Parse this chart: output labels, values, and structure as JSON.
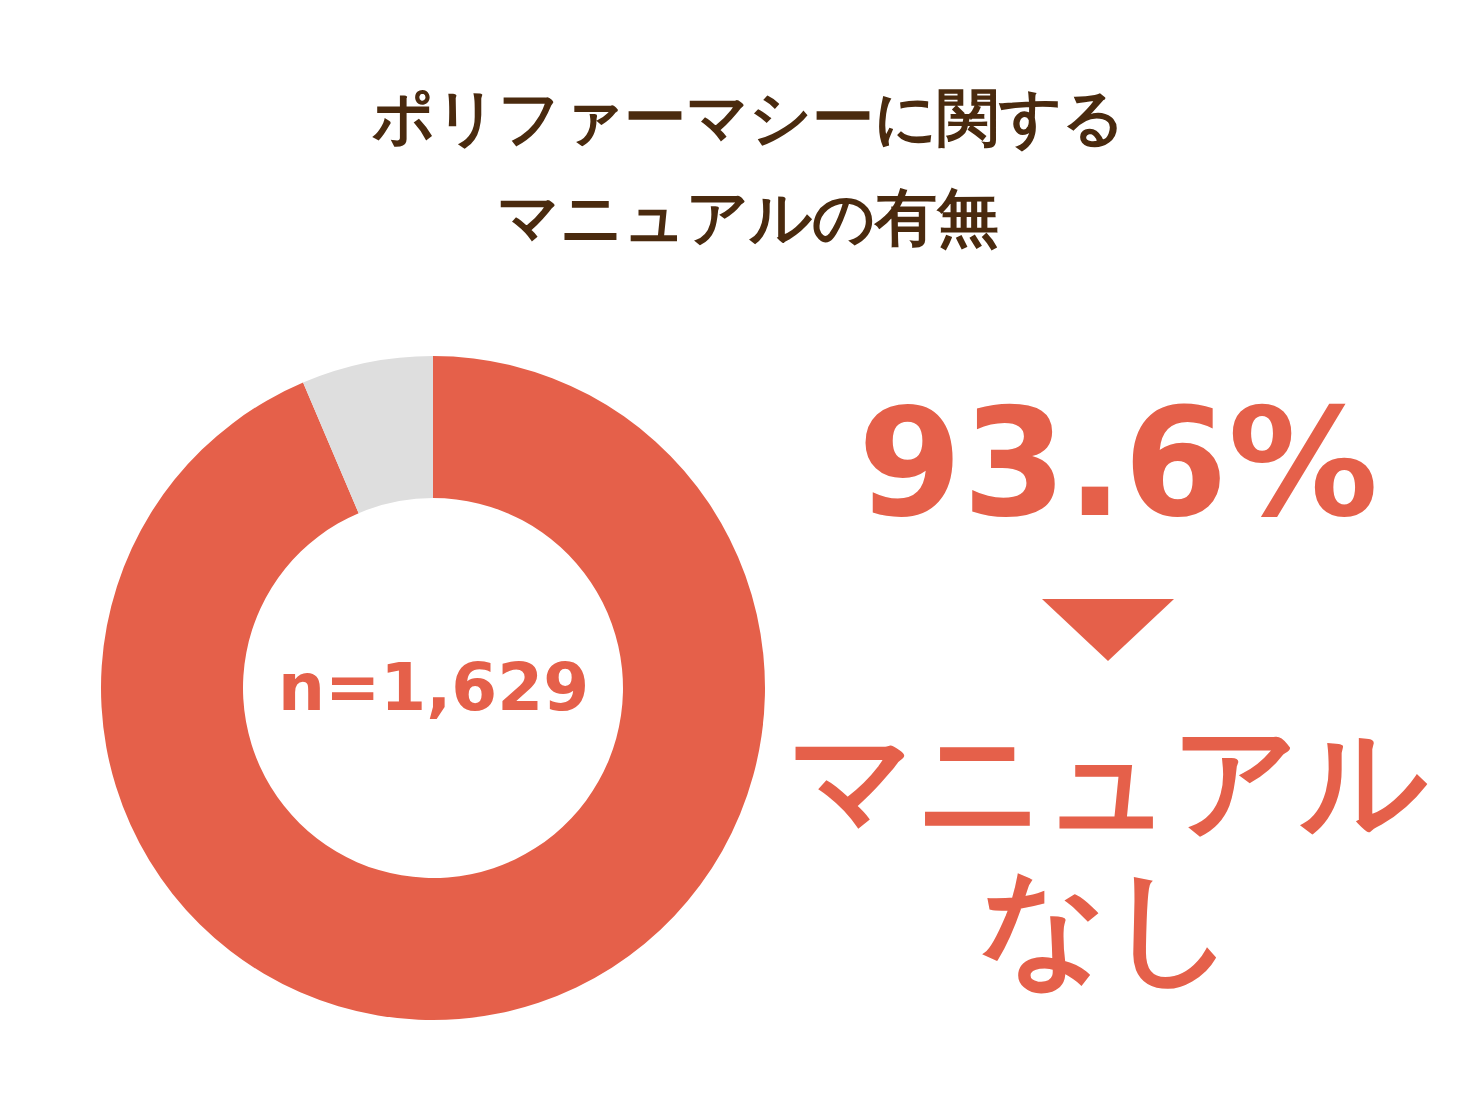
{
  "chart_data": {
    "type": "donut",
    "title": "ポリファーマシーに関するマニュアルの有無",
    "categories": [
      "マニュアルなし",
      null
    ],
    "values": [
      93.6,
      6.4
    ],
    "colors": [
      "#e5604a",
      "#dedede"
    ],
    "value_labels": [
      "93.6%",
      null
    ],
    "annotations": [
      "n=1,629"
    ]
  }
}
